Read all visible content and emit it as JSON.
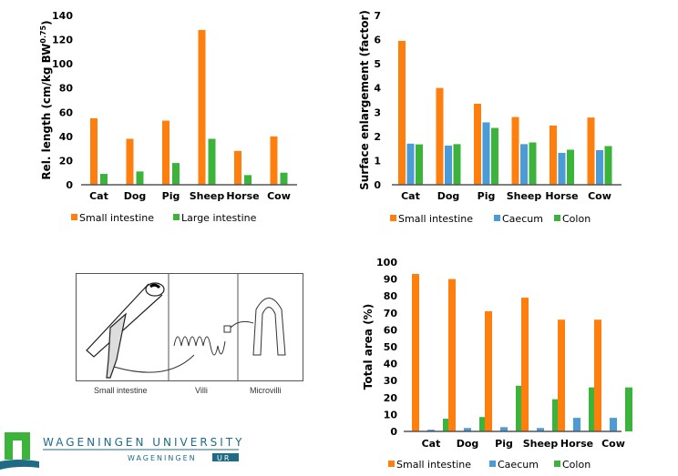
{
  "colors": {
    "small_intestine": "#ff7f0e",
    "large_intestine": "#3cb43c",
    "caecum": "#4b9bd7",
    "colon": "#3cb43c",
    "axis": "#555555"
  },
  "chart_data": [
    {
      "type": "bar",
      "title": "",
      "ylabel": "Rel. length (cm/kg BW",
      "ylabel_sup": "0.75",
      "ylabel_end": ")",
      "ylim": [
        0,
        140
      ],
      "yticks": [
        0,
        20,
        40,
        60,
        80,
        100,
        120,
        140
      ],
      "categories": [
        "Cat",
        "Dog",
        "Pig",
        "Sheep",
        "Horse",
        "Cow"
      ],
      "legend": "bottom",
      "series": [
        {
          "name": "Small intestine",
          "color": "#ff7f0e",
          "values": [
            55,
            38,
            53,
            128,
            28,
            40
          ]
        },
        {
          "name": "Large intestine",
          "color": "#3cb43c",
          "values": [
            9,
            11,
            18,
            38,
            8,
            10
          ]
        }
      ]
    },
    {
      "type": "bar",
      "title": "",
      "ylabel": "Surface enlargement (factor)",
      "ylim": [
        0,
        7
      ],
      "yticks": [
        0,
        1,
        2,
        3,
        4,
        5,
        6,
        7
      ],
      "categories": [
        "Cat",
        "Dog",
        "Pig",
        "Sheep",
        "Horse",
        "Cow"
      ],
      "legend": "bottom",
      "series": [
        {
          "name": "Small intestine",
          "color": "#ff7f0e",
          "values": [
            5.95,
            4.0,
            3.35,
            2.8,
            2.45,
            2.78
          ]
        },
        {
          "name": "Caecum",
          "color": "#4b9bd7",
          "values": [
            1.7,
            1.62,
            2.58,
            1.68,
            1.32,
            1.43
          ]
        },
        {
          "name": "Colon",
          "color": "#3cb43c",
          "values": [
            1.67,
            1.68,
            2.35,
            1.75,
            1.45,
            1.6
          ]
        }
      ]
    },
    {
      "type": "bar",
      "title": "",
      "ylabel": "Total area (%)",
      "ylim": [
        0,
        100
      ],
      "yticks": [
        0,
        10,
        20,
        30,
        40,
        50,
        60,
        70,
        80,
        90,
        100
      ],
      "categories": [
        "Cat",
        "Dog",
        "Pig",
        "Sheep",
        "Horse",
        "Cow"
      ],
      "legend": "bottom",
      "series": [
        {
          "name": "Small intestine",
          "color": "#ff7f0e",
          "values": [
            93,
            90,
            71,
            79,
            66,
            66
          ]
        },
        {
          "name": "Caecum",
          "color": "#4b9bd7",
          "values": [
            1,
            2,
            2.5,
            2,
            8,
            8
          ]
        },
        {
          "name": "Colon",
          "color": "#3cb43c",
          "values": [
            7.5,
            8.5,
            27,
            19,
            26,
            26
          ]
        }
      ]
    }
  ],
  "figure": {
    "captions": [
      "Small intestine",
      "Villi",
      "Microvilli"
    ]
  },
  "logo": {
    "line1": "WAGENINGEN UNIVERSITY",
    "line2": "WAGENINGEN",
    "line2_box": "UR"
  }
}
